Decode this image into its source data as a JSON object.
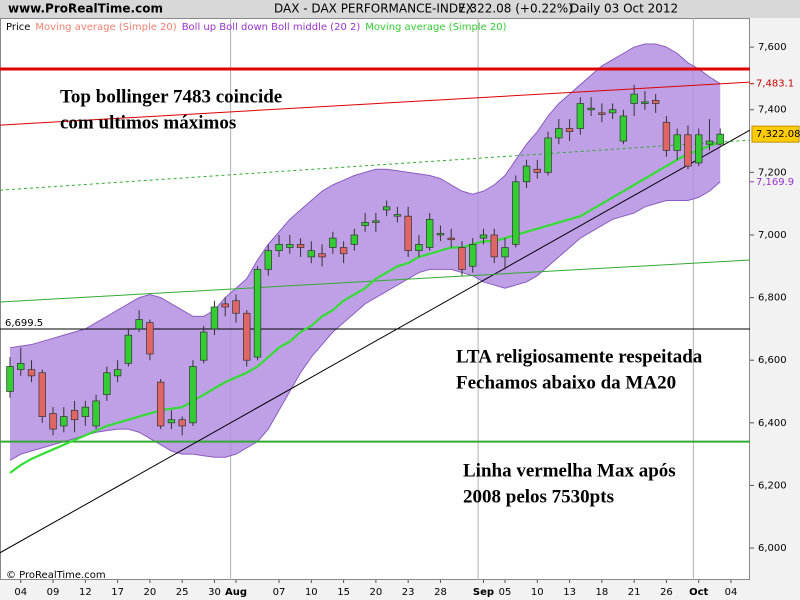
{
  "chart_data": {
    "type": "candlestick",
    "site": "www.ProRealTime.com",
    "title": "DAX - DAX PERFORMANCE-INDEX",
    "last": "7,322.08 (+0.22%)",
    "period": "Daily",
    "date": "03 Oct 2012",
    "footer": "© ProRealTime.com",
    "legend": [
      {
        "name": "Price",
        "color": "#000000"
      },
      {
        "name": "Moving average (Simple 20)",
        "color": "#f08070"
      },
      {
        "name": "Boll up Boll down Boll middle (20 2)",
        "color": "#9933cc"
      },
      {
        "name": "Moving average (Simple 20)",
        "color": "#33cc33"
      }
    ],
    "categories": [
      null,
      "04",
      null,
      null,
      "09",
      null,
      null,
      "12",
      null,
      null,
      "17",
      null,
      null,
      "20",
      null,
      null,
      "25",
      null,
      null,
      "30",
      null,
      "Aug",
      null,
      null,
      null,
      "07",
      null,
      null,
      "10",
      null,
      null,
      "15",
      null,
      null,
      "20",
      null,
      null,
      "23",
      null,
      null,
      "28",
      null,
      null,
      null,
      "Sep",
      null,
      "05",
      null,
      null,
      "10",
      null,
      null,
      "13",
      null,
      null,
      "18",
      null,
      null,
      "21",
      null,
      null,
      "26",
      null,
      null,
      "Oct",
      null,
      null,
      "04"
    ],
    "open": [
      6500,
      6570,
      6570,
      6560,
      6430,
      6390,
      6440,
      6420,
      6390,
      6490,
      6550,
      6590,
      6700,
      6720,
      6530,
      6400,
      6410,
      6400,
      6600,
      6700,
      6780,
      6790,
      6750,
      6610,
      6890,
      6950,
      6960,
      6970,
      6930,
      6940,
      6960,
      6960,
      6970,
      7030,
      7040,
      7080,
      7060,
      7060,
      6950,
      6960,
      7000,
      6990,
      6960,
      6900,
      6990,
      7000,
      6930,
      6970,
      7170,
      7210,
      7200,
      7310,
      7340,
      7340,
      7400,
      7390,
      7390,
      7300,
      7420,
      7420,
      7430,
      7360,
      7270,
      7320,
      7230,
      7290,
      7290,
      null
    ],
    "high": [
      6610,
      6640,
      6600,
      6570,
      6450,
      6450,
      6470,
      6470,
      6490,
      6580,
      6600,
      6700,
      6760,
      6730,
      6540,
      6440,
      6420,
      6600,
      6710,
      6790,
      6800,
      6810,
      6760,
      6900,
      6970,
      7000,
      7000,
      6990,
      6980,
      6970,
      7010,
      6980,
      7020,
      7070,
      7070,
      7110,
      7090,
      7090,
      7000,
      7070,
      7030,
      7020,
      6980,
      6990,
      7020,
      7020,
      6990,
      7190,
      7240,
      7240,
      7330,
      7370,
      7370,
      7440,
      7440,
      7420,
      7420,
      7400,
      7480,
      7460,
      7450,
      7380,
      7340,
      7350,
      7340,
      7370,
      7340,
      null
    ],
    "low": [
      6480,
      6550,
      6530,
      6400,
      6360,
      6370,
      6370,
      6390,
      6380,
      6470,
      6530,
      6580,
      6690,
      6600,
      6380,
      6380,
      6360,
      6390,
      6590,
      6680,
      6740,
      6720,
      6580,
      6600,
      6870,
      6930,
      6940,
      6930,
      6910,
      6900,
      6940,
      6910,
      6950,
      7010,
      7010,
      7060,
      7040,
      6930,
      6930,
      6950,
      6980,
      6960,
      6870,
      6880,
      6970,
      6910,
      6890,
      6960,
      7150,
      7180,
      7190,
      7290,
      7300,
      7320,
      7380,
      7360,
      7370,
      7290,
      7380,
      7400,
      7390,
      7250,
      7240,
      7210,
      7220,
      7270,
      7280,
      null
    ],
    "close": [
      6580,
      6590,
      6550,
      6420,
      6380,
      6420,
      6410,
      6450,
      6470,
      6560,
      6570,
      6680,
      6730,
      6620,
      6390,
      6410,
      6390,
      6580,
      6690,
      6770,
      6770,
      6750,
      6600,
      6890,
      6950,
      6970,
      6970,
      6960,
      6950,
      6930,
      6990,
      6940,
      7000,
      7040,
      7045,
      7090,
      7065,
      6950,
      6970,
      7050,
      7005,
      6985,
      6890,
      6970,
      7000,
      6930,
      6960,
      7170,
      7220,
      7200,
      7310,
      7340,
      7330,
      7420,
      7405,
      7385,
      7400,
      7380,
      7450,
      7425,
      7420,
      7270,
      7320,
      7220,
      7320,
      7300,
      7322.08,
      null
    ],
    "boll_up": [
      6640,
      6645,
      6650,
      6660,
      6670,
      6680,
      6690,
      6700,
      6720,
      6740,
      6760,
      6780,
      6800,
      6810,
      6800,
      6780,
      6760,
      6740,
      6740,
      6760,
      6800,
      6830,
      6860,
      6920,
      6970,
      7010,
      7050,
      7080,
      7110,
      7140,
      7160,
      7175,
      7190,
      7200,
      7210,
      7210,
      7205,
      7200,
      7195,
      7190,
      7180,
      7160,
      7140,
      7130,
      7140,
      7160,
      7190,
      7240,
      7290,
      7330,
      7380,
      7420,
      7450,
      7480,
      7510,
      7540,
      7560,
      7580,
      7600,
      7610,
      7610,
      7600,
      7580,
      7550,
      7530,
      7505,
      7483.1,
      null
    ],
    "boll_down": [
      6280,
      6300,
      6310,
      6320,
      6330,
      6340,
      6350,
      6360,
      6370,
      6375,
      6380,
      6380,
      6370,
      6350,
      6330,
      6310,
      6300,
      6300,
      6295,
      6290,
      6290,
      6300,
      6320,
      6340,
      6380,
      6440,
      6500,
      6560,
      6610,
      6650,
      6690,
      6720,
      6750,
      6780,
      6800,
      6820,
      6840,
      6860,
      6880,
      6890,
      6890,
      6890,
      6880,
      6870,
      6850,
      6840,
      6830,
      6840,
      6850,
      6870,
      6900,
      6930,
      6960,
      6990,
      7010,
      7030,
      7050,
      7060,
      7070,
      7090,
      7100,
      7110,
      7110,
      7110,
      7120,
      7140,
      7169.9,
      null
    ],
    "ma20": [
      6240,
      6265,
      6285,
      6300,
      6315,
      6330,
      6345,
      6360,
      6375,
      6390,
      6400,
      6410,
      6420,
      6430,
      6440,
      6445,
      6450,
      6470,
      6490,
      6510,
      6530,
      6545,
      6560,
      6580,
      6610,
      6640,
      6660,
      6690,
      6710,
      6740,
      6760,
      6790,
      6810,
      6830,
      6860,
      6880,
      6900,
      6910,
      6930,
      6940,
      6950,
      6960,
      6960,
      6970,
      6980,
      6980,
      6990,
      7000,
      7010,
      7020,
      7030,
      7040,
      7050,
      7060,
      7080,
      7100,
      7120,
      7140,
      7160,
      7180,
      7200,
      7220,
      7240,
      7260,
      7270,
      7285,
      7295,
      null
    ],
    "up_color": "#33cc33",
    "down_color": "#e06666",
    "band_color": "#b48ee0",
    "ma_color": "#33dd33",
    "ylim": [
      5898,
      7693
    ],
    "yticks": [
      {
        "value": 6000,
        "label": "6,000"
      },
      {
        "value": 6200,
        "label": "6,200"
      },
      {
        "value": 6400,
        "label": "6,400"
      },
      {
        "value": 6600,
        "label": "6,600"
      },
      {
        "value": 6800,
        "label": "6,800"
      },
      {
        "value": 7000,
        "label": "7,000"
      },
      {
        "value": 7200,
        "label": "7,200"
      },
      {
        "value": 7400,
        "label": "7,400"
      },
      {
        "value": 7600,
        "label": "7,600"
      }
    ],
    "hlines": [
      {
        "value": 7530,
        "color": "#dd0000",
        "width": 3
      },
      {
        "value": 6699.5,
        "label": "6,699.5",
        "color": "#000000",
        "width": 1
      },
      {
        "value": 6340,
        "color": "#33aa33",
        "width": 2
      }
    ],
    "trendlines": [
      {
        "color": "#000000",
        "values": [
          5985,
          7335
        ]
      },
      {
        "color": "#dd0000",
        "values": [
          7351,
          7488
        ]
      },
      {
        "color": "#33aa33",
        "values": [
          6786,
          6920
        ]
      },
      {
        "color": "#33aa33",
        "dashed": true,
        "values": [
          7143,
          7303
        ]
      }
    ],
    "markers": [
      {
        "value": 7483.1,
        "label": "7,483.1",
        "color": "#cc0000"
      },
      {
        "value": 7322.08,
        "label": "7,322.08",
        "color": "#000000",
        "background": "#ffcc00"
      },
      {
        "value": 7169.9,
        "label": "7,169.9",
        "color": "#9933cc"
      }
    ],
    "annotations": [
      {
        "lines": [
          "Top bollinger 7483 coincide",
          "com ultimos máximos"
        ]
      },
      {
        "lines": [
          "LTA religiosamente respeitada",
          "Fechamos abaixo da MA20"
        ]
      },
      {
        "lines": [
          "Linha vermelha Max após",
          "2008 pelos 7530pts"
        ]
      }
    ]
  }
}
